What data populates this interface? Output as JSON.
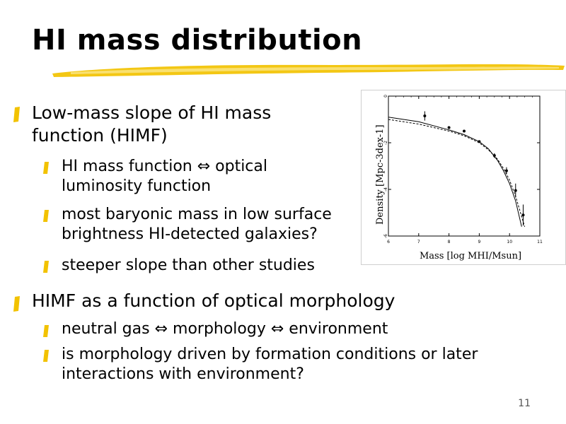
{
  "slide": {
    "title": "HI mass distribution",
    "page_number": "11",
    "accent_color": "#f2c200",
    "bullets": [
      {
        "text": "Low-mass slope of HI mass function (HIMF)",
        "sub": [
          "HI mass function ⇔ optical luminosity function",
          "most baryonic mass in low surface brightness HI-detected galaxies?",
          "steeper slope than other studies"
        ]
      },
      {
        "text": "HIMF as a function of optical morphology",
        "sub": [
          "neutral gas ⇔ morphology ⇔ environment",
          "is morphology driven by formation conditions or later interactions with environment?"
        ]
      }
    ]
  },
  "figure": {
    "ylabel": "Density  [Mpc-3dex-1]",
    "xlabel": "Mass [log MHI/Msun]",
    "ytick_labels": [
      "0",
      "-2",
      "-4",
      "-6"
    ],
    "xtick_labels": [
      "6",
      "7",
      "8",
      "9",
      "10",
      "11"
    ]
  },
  "chart_data": {
    "type": "line",
    "xlim": [
      6,
      11
    ],
    "ylim": [
      -6,
      0
    ],
    "series": [
      {
        "x": [
          6.0,
          7.0,
          8.0,
          8.5,
          9.0,
          9.3,
          9.6,
          9.8,
          10.0,
          10.2,
          10.4
        ],
        "y": [
          -0.9,
          -1.1,
          -1.45,
          -1.65,
          -1.95,
          -2.25,
          -2.75,
          -3.2,
          -3.75,
          -4.5,
          -5.6
        ]
      },
      {
        "x": [
          6.0,
          7.0,
          8.0,
          8.5,
          9.0,
          9.3,
          9.6,
          9.8,
          10.0,
          10.2,
          10.5
        ],
        "y": [
          -1.0,
          -1.2,
          -1.5,
          -1.7,
          -2.0,
          -2.3,
          -2.7,
          -3.1,
          -3.6,
          -4.3,
          -5.6
        ]
      }
    ],
    "points": {
      "x": [
        7.2,
        8.0,
        8.5,
        9.0,
        9.5,
        9.9,
        10.2,
        10.45
      ],
      "y": [
        -0.85,
        -1.35,
        -1.5,
        -1.95,
        -2.55,
        -3.2,
        -4.05,
        -5.1
      ],
      "yerr": [
        0.2,
        0.05,
        0.05,
        0.05,
        0.1,
        0.15,
        0.3,
        0.45
      ]
    }
  }
}
